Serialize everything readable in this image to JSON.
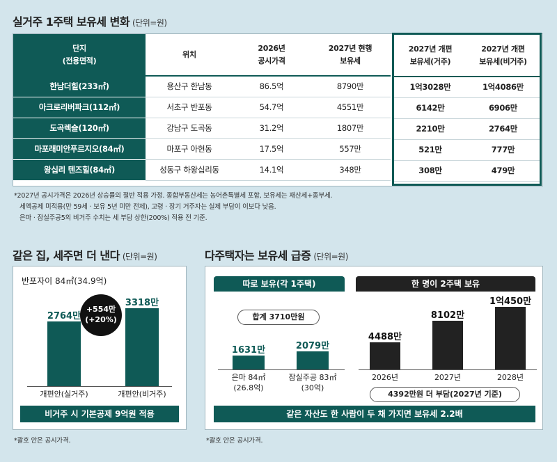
{
  "top": {
    "title": "실거주 1주택 보유세 변화",
    "unit": "(단위=원)",
    "headers": {
      "danji": "단지\n(전용면적)",
      "location": "위치",
      "price": "2026년\n공시가격",
      "tax2027": "2027년 현행\n보유세",
      "reform_res": "2027년 개편\n보유세(거주)",
      "reform_nonres": "2027년 개편\n보유세(비거주)"
    },
    "rows": [
      {
        "danji": "한남더힐(233㎡)",
        "location": "용산구 한남동",
        "price": "86.5억",
        "tax2027": "8790만",
        "reform_res": "1억3028만",
        "reform_nonres": "1억4086만"
      },
      {
        "danji": "아크로리버파크(112㎡)",
        "location": "서초구 반포동",
        "price": "54.7억",
        "tax2027": "4551만",
        "reform_res": "6142만",
        "reform_nonres": "6906만"
      },
      {
        "danji": "도곡렉슬(120㎡)",
        "location": "강남구 도곡동",
        "price": "31.2억",
        "tax2027": "1807만",
        "reform_res": "2210만",
        "reform_nonres": "2764만"
      },
      {
        "danji": "마포래미안푸르지오(84㎡)",
        "location": "마포구 아현동",
        "price": "17.5억",
        "tax2027": "557만",
        "reform_res": "521만",
        "reform_nonres": "777만"
      },
      {
        "danji": "왕십리 텐즈힐(84㎡)",
        "location": "성동구 하왕십리동",
        "price": "14.1억",
        "tax2027": "348만",
        "reform_res": "308만",
        "reform_nonres": "479만"
      }
    ],
    "notes": [
      "*2027년 공시가격은 2026년 상승률의 절반 적용 가정. 종합부동산세는 농어촌특별세 포함, 보유세는 재산세+종부세.",
      "세액공제 미적용(만 59세 · 보유 5년 미만 전제), 고령 · 장기 거주자는 실제 부담이 이보다 낮음.",
      "은마 · 잠실주공5의 비거주 수치는 세 부담 상한(200%) 적용 전 기준."
    ]
  },
  "left": {
    "title": "같은 집, 세주면 더 낸다",
    "unit": "(단위=원)",
    "subtitle": "반포자이 84㎡(34.9억)",
    "diff": "+554만\n(+20%)",
    "banner": "비거주 시 기본공제 9억원 적용",
    "note": "*괄호 안은 공시가격."
  },
  "right": {
    "title": "다주택자는 보유세 급증",
    "unit": "(단위=원)",
    "header_left": "따로 보유(각 1주택)",
    "header_right": "한 명이 2주택 보유",
    "sum_pill": "합계 3710만원",
    "burden_pill": "4392만원 더 부담(2027년 기준)",
    "banner": "같은 자산도 한 사람이 두 채 가지면 보유세 2.2배",
    "note": "*괄호 안은 공시가격."
  },
  "chart_data": [
    {
      "type": "bar",
      "title": "같은 집, 세주면 더 낸다",
      "subtitle": "반포자이 84㎡(34.9억)",
      "categories": [
        "개편안(실거주)",
        "개편안(비거주)"
      ],
      "values": [
        2764,
        3318
      ],
      "value_labels": [
        "2764만",
        "3318만"
      ],
      "unit": "만원",
      "colors": [
        "#0f5a56",
        "#0f5a56"
      ]
    },
    {
      "type": "bar",
      "title": "따로 보유(각 1주택)",
      "categories": [
        "은마 84㎡\n(26.8억)",
        "잠실주공 83㎡\n(30억)"
      ],
      "values": [
        1631,
        2079
      ],
      "value_labels": [
        "1631만",
        "2079만"
      ],
      "unit": "만원",
      "colors": [
        "#0f5a56",
        "#0f5a56"
      ]
    },
    {
      "type": "bar",
      "title": "한 명이 2주택 보유",
      "categories": [
        "2026년",
        "2027년",
        "2028년"
      ],
      "values": [
        4488,
        8102,
        10450
      ],
      "value_labels": [
        "4488만",
        "8102만",
        "1억450만"
      ],
      "unit": "만원",
      "colors": [
        "#222222",
        "#222222",
        "#222222"
      ]
    }
  ]
}
